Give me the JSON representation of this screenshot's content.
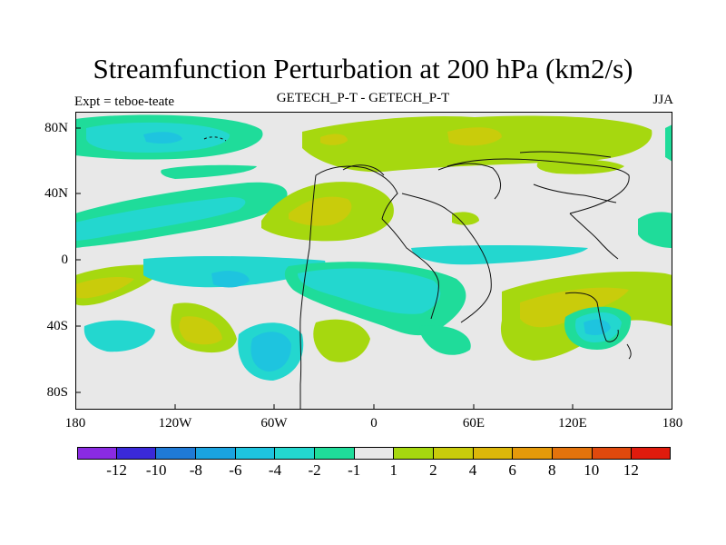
{
  "title": "Streamfunction Perturbation at 200 hPa (km2/s)",
  "subtitle_left": "Expt = teboe-teate",
  "subtitle_center": "GETECH_P-T - GETECH_P-T",
  "subtitle_right": "JJA",
  "y_axis": {
    "labels": [
      "80N",
      "40N",
      "0",
      "40S",
      "80S"
    ]
  },
  "x_axis": {
    "labels": [
      "180",
      "120W",
      "60W",
      "0",
      "60E",
      "120E",
      "180"
    ]
  },
  "colorbar": {
    "colors": [
      "#8a2be2",
      "#3a29d9",
      "#1f7ad6",
      "#1aa3e0",
      "#1ec4df",
      "#23d7cf",
      "#1fdc9a",
      "#e8e8e8",
      "#a6d80f",
      "#c9cc0b",
      "#dcb70a",
      "#e59a0a",
      "#e3730c",
      "#e0490d",
      "#e01b0d"
    ],
    "labels": [
      "-12",
      "-10",
      "-8",
      "-6",
      "-4",
      "-2",
      "-1",
      "1",
      "2",
      "4",
      "6",
      "8",
      "10",
      "12"
    ]
  },
  "map": {
    "background_color": "#e8e8e8",
    "levels": {
      "-4": "#1ec4df",
      "-2": "#23d7cf",
      "-1": "#1fdc9a",
      "1": "#a6d80f",
      "2": "#c9cc0b"
    }
  }
}
